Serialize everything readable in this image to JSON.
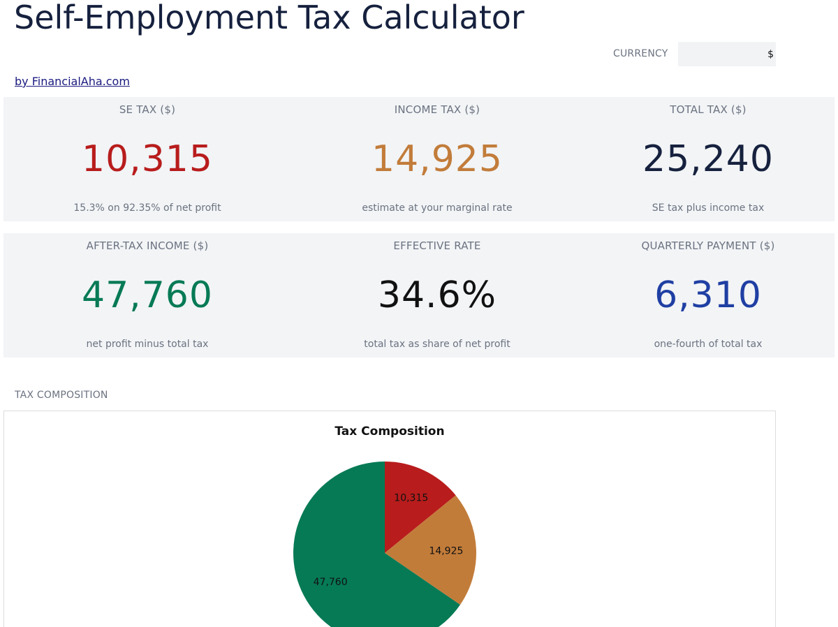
{
  "header": {
    "title": "Self-Employment Tax Calculator",
    "byline": "by FinancialAha.com"
  },
  "currency": {
    "label": "CURRENCY",
    "value": "$"
  },
  "kpis": [
    {
      "label": "SE TAX ($)",
      "value": "10,315",
      "note": "15.3% on 92.35% of net profit",
      "color": "#b81c1c"
    },
    {
      "label": "INCOME TAX ($)",
      "value": "14,925",
      "note": "estimate at your marginal rate",
      "color": "#c27c3a"
    },
    {
      "label": "TOTAL TAX ($)",
      "value": "25,240",
      "note": "SE tax plus income tax",
      "color": "#16213e"
    },
    {
      "label": "AFTER-TAX INCOME ($)",
      "value": "47,760",
      "note": "net profit minus total tax",
      "color": "#067a55"
    },
    {
      "label": "EFFECTIVE RATE",
      "value": "34.6%",
      "note": "total tax as share of net profit",
      "color": "#111111"
    },
    {
      "label": "QUARTERLY PAYMENT ($)",
      "value": "6,310",
      "note": "one-fourth of total tax",
      "color": "#1f3fa3"
    }
  ],
  "section": {
    "label": "TAX COMPOSITION"
  },
  "chart_data": {
    "type": "pie",
    "title": "Tax Composition",
    "slices": [
      {
        "value": 10315,
        "label": "10,315",
        "color": "#b81c1c"
      },
      {
        "value": 14925,
        "label": "14,925",
        "color": "#c27c3a"
      },
      {
        "value": 47760,
        "label": "47,760",
        "color": "#067a55"
      }
    ],
    "start_angle_deg": 90,
    "direction": "clockwise"
  }
}
